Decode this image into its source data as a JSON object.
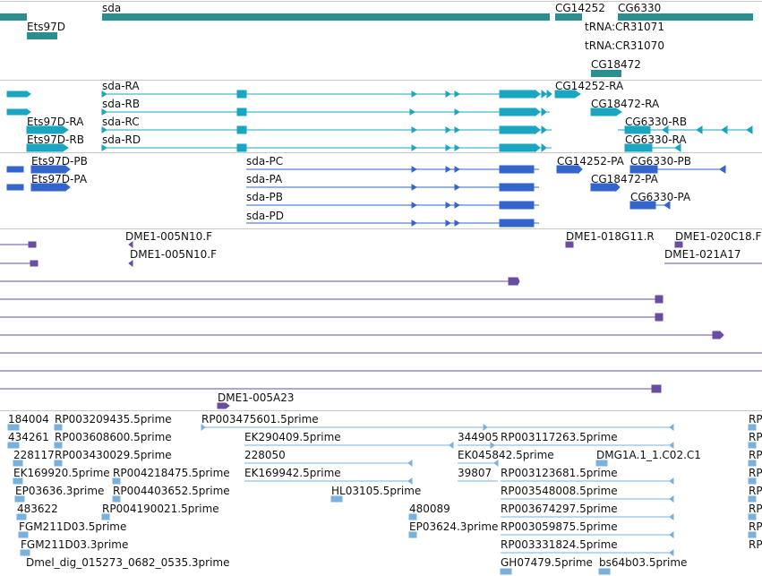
{
  "tracks": {
    "genes": {
      "labels": [
        "sda",
        "CG14252",
        "CG6330",
        "Ets97D",
        "tRNA:CR31071",
        "tRNA:CR31070",
        "CG18472"
      ]
    },
    "transcripts": {
      "labels": [
        "sda-RA",
        "CG14252-RA",
        "sda-RB",
        "CG18472-RA",
        "Ets97D-RA",
        "sda-RC",
        "CG6330-RB",
        "Ets97D-RB",
        "sda-RD",
        "CG6330-RA"
      ]
    },
    "proteins": {
      "labels": [
        "Ets97D-PB",
        "sda-PC",
        "CG14252-PA",
        "CG6330-PB",
        "Ets97D-PA",
        "sda-PA",
        "CG18472-PA",
        "sda-PB",
        "CG6330-PA",
        "sda-PD"
      ]
    },
    "clones": {
      "labels": [
        "DME1-005N10.F",
        "DME1-018G11.R",
        "DME1-020C18.F",
        "DME1-005N10.F",
        "DME1-021A17",
        "DME1-005A23"
      ]
    },
    "ests": {
      "labels": [
        "184004",
        "RP003209435.5prime",
        "RP003475601.5prime",
        "RP",
        "434261",
        "RP003608600.5prime",
        "EK290409.5prime",
        "344905",
        "RP003117263.5prime",
        "RP",
        "228117",
        "RP003430029.5prime",
        "228050",
        "EK045842.5prime",
        "DMG1A.1_1.C02.C1",
        "RP",
        "EK169920.5prime",
        "RP004218475.5prime",
        "EK169942.5prime",
        "39807",
        "RP003123681.5prime",
        "RP",
        "EP03636.3prime",
        "RP004403652.5prime",
        "HL03105.5prime",
        "RP003548008.5prime",
        "RP",
        "483622",
        "RP004190021.5prime",
        "480089",
        "RP003674297.5prime",
        "RP",
        "FGM211D03.5prime",
        "EP03624.3prime",
        "RP003059875.5prime",
        "RP",
        "FGM211D03.3prime",
        "RP003331824.5prime",
        "RP",
        "Dmel_dig_015273_0682_0535.3prime",
        "GH07479.5prime",
        "bs64b03.5prime"
      ]
    }
  },
  "colors": {
    "gene": "#2a8f8e",
    "transcript": "#1aa5c0",
    "protein": "#3366cc",
    "clone": "#6a4da0",
    "est": "#7ab1dc"
  }
}
